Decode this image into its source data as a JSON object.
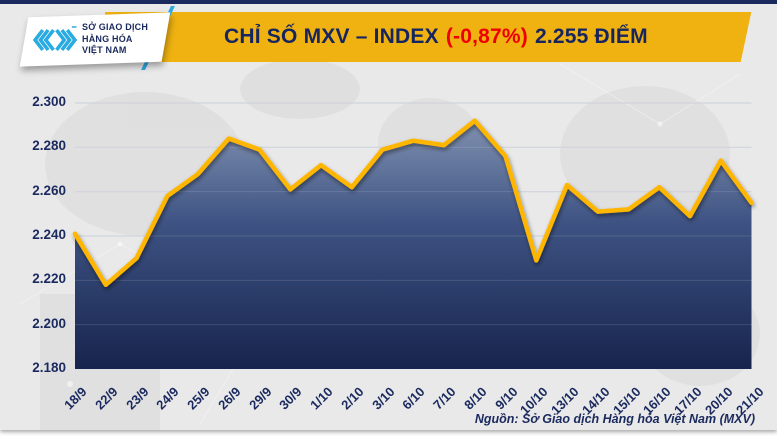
{
  "header": {
    "logo": {
      "icon": "mxv-chevrons-icon",
      "lines": [
        "SỞ GIAO DỊCH",
        "HÀNG HÓA",
        "VIỆT NAM"
      ]
    },
    "title": {
      "main": "CHỈ SỐ MXV – INDEX",
      "change": "(-0,87%)",
      "value": "2.255 ĐIỂM"
    }
  },
  "chart_data": {
    "type": "area",
    "title": "CHỈ SỐ MXV – INDEX (-0,87%) 2.255 ĐIỂM",
    "categories": [
      "18/9",
      "22/9",
      "23/9",
      "24/9",
      "25/9",
      "26/9",
      "29/9",
      "30/9",
      "1/10",
      "2/10",
      "3/10",
      "6/10",
      "7/10",
      "8/10",
      "9/10",
      "10/10",
      "13/10",
      "14/10",
      "15/10",
      "16/10",
      "17/10",
      "20/10",
      "21/10"
    ],
    "values": [
      2241,
      2218,
      2230,
      2258,
      2268,
      2284,
      2279,
      2261,
      2272,
      2262,
      2279,
      2283,
      2281,
      2292,
      2276,
      2229,
      2263,
      2251,
      2252,
      2262,
      2249,
      2274,
      2255
    ],
    "xlabel": "",
    "ylabel": "",
    "ylim": [
      2180,
      2300
    ],
    "yticks": [
      2300,
      2280,
      2260,
      2240,
      2220,
      2200,
      2180
    ],
    "ytick_labels": [
      "2.300",
      "2.280",
      "2.260",
      "2.240",
      "2.220",
      "2.200",
      "2.180"
    ],
    "x_tick_rotation": -45,
    "grid": true,
    "legend": false
  },
  "footer": {
    "source": "Nguồn: Sở Giao dịch Hàng hóa Việt Nam (MXV)"
  },
  "colors": {
    "banner": "#EFB211",
    "navy": "#16255E",
    "red": "#EF0000",
    "brand_cyan": "#29ABE2",
    "line": "#FFB606",
    "fill_top": "#8C9CB8",
    "fill_mid": "#3E5383",
    "fill_bottom": "#17244D",
    "background": "#E9E9EA",
    "grid": "#CBCFD8"
  }
}
